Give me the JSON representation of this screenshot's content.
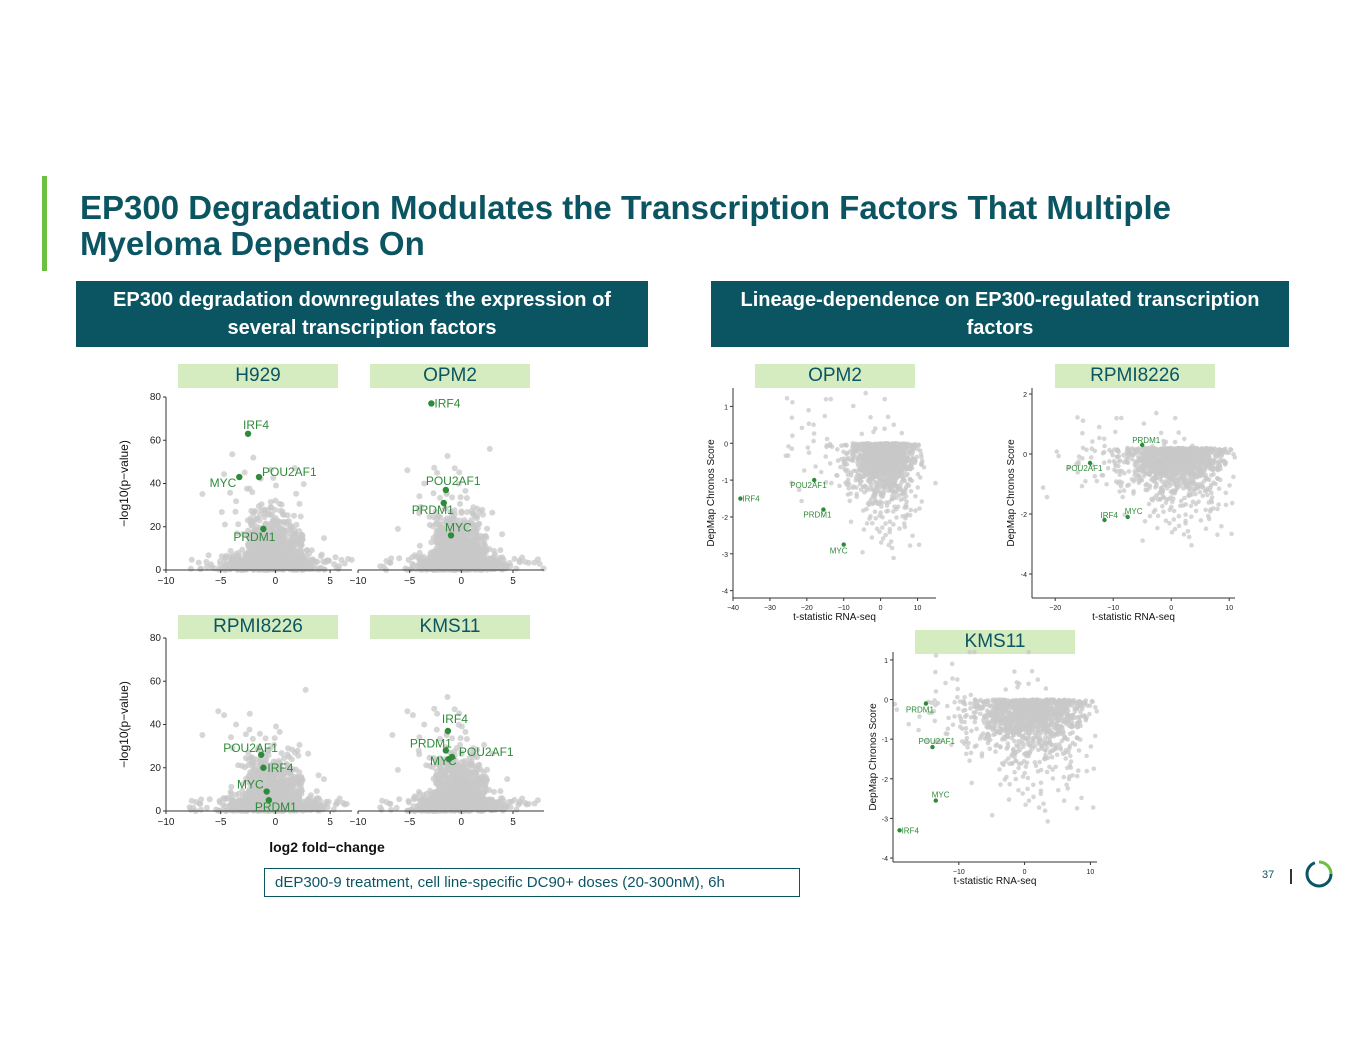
{
  "title": "EP300 Degradation Modulates the Transcription Factors That Multiple Myeloma Depends On",
  "sections": {
    "left": "EP300 degradation downregulates the expression of several transcription factors",
    "right": "Lineage-dependence on EP300-regulated transcription factors"
  },
  "footnote": "dEP300-9 treatment, cell line-specific DC90+ doses (20-300nM), 6h",
  "page_number": "37",
  "colors": {
    "title": "#0b5563",
    "accent": "#6cbf3f",
    "label_bg": "#d5ecc0",
    "highlight": "#2e8b3a",
    "background_points": "#c8c8c8"
  },
  "chart_data": [
    {
      "type": "scatter",
      "panel": "H929",
      "ylabel": "−log10(p−value)",
      "xlim": [
        -10,
        7
      ],
      "ylim": [
        0,
        80
      ],
      "xticks": [
        -10,
        -5,
        0,
        5
      ],
      "yticks": [
        0,
        20,
        40,
        60,
        80
      ],
      "highlighted": [
        {
          "label": "IRF4",
          "x": -2.5,
          "y": 63
        },
        {
          "label": "MYC",
          "x": -3.3,
          "y": 43
        },
        {
          "label": "POU2AF1",
          "x": -1.5,
          "y": 43
        },
        {
          "label": "PRDM1",
          "x": -1.1,
          "y": 19
        }
      ]
    },
    {
      "type": "scatter",
      "panel": "OPM2",
      "xlim": [
        -10,
        8
      ],
      "ylim": [
        0,
        80
      ],
      "xticks": [
        -10,
        -5,
        0,
        5
      ],
      "highlighted": [
        {
          "label": "IRF4",
          "x": -2.9,
          "y": 77
        },
        {
          "label": "POU2AF1",
          "x": -1.5,
          "y": 37
        },
        {
          "label": "PRDM1",
          "x": -1.7,
          "y": 31
        },
        {
          "label": "MYC",
          "x": -1.0,
          "y": 16
        }
      ]
    },
    {
      "type": "scatter",
      "panel": "RPMI8226",
      "ylabel": "−log10(p−value)",
      "xlim": [
        -10,
        7
      ],
      "ylim": [
        0,
        80
      ],
      "xticks": [
        -10,
        -5,
        0,
        5
      ],
      "yticks": [
        0,
        20,
        40,
        60,
        80
      ],
      "highlighted": [
        {
          "label": "POU2AF1",
          "x": -1.3,
          "y": 26
        },
        {
          "label": "IRF4",
          "x": -1.1,
          "y": 20
        },
        {
          "label": "MYC",
          "x": -0.8,
          "y": 9
        },
        {
          "label": "PRDM1",
          "x": -0.6,
          "y": 5
        }
      ]
    },
    {
      "type": "scatter",
      "panel": "KMS11",
      "xlabel": "log2 fold−change",
      "xlim": [
        -10,
        8
      ],
      "ylim": [
        0,
        80
      ],
      "xticks": [
        -10,
        -5,
        0,
        5
      ],
      "highlighted": [
        {
          "label": "IRF4",
          "x": -1.3,
          "y": 37
        },
        {
          "label": "PRDM1",
          "x": -1.5,
          "y": 28
        },
        {
          "label": "POU2AF1",
          "x": -1.2,
          "y": 24
        },
        {
          "label": "MYC",
          "x": -0.9,
          "y": 25
        }
      ]
    },
    {
      "type": "scatter",
      "panel": "OPM2",
      "xlabel": "t-statistic RNA-seq",
      "ylabel": "DepMap Chronos Score",
      "xlim": [
        -40,
        15
      ],
      "ylim": [
        -4.2,
        1.5
      ],
      "xticks": [
        -40,
        -30,
        -20,
        -10,
        0,
        10
      ],
      "yticks": [
        1,
        0,
        -1,
        -2,
        -3,
        -4
      ],
      "highlighted": [
        {
          "label": "IRF4",
          "x": -38,
          "y": -1.5
        },
        {
          "label": "POU2AF1",
          "x": -18,
          "y": -1.0
        },
        {
          "label": "PRDM1",
          "x": -15.5,
          "y": -1.8
        },
        {
          "label": "MYC",
          "x": -10,
          "y": -2.75
        }
      ]
    },
    {
      "type": "scatter",
      "panel": "RPMI8226",
      "xlabel": "t-statistic RNA-seq",
      "ylabel": "DepMap Chronos Score",
      "xlim": [
        -24,
        11
      ],
      "ylim": [
        -4.8,
        2.2
      ],
      "xticks": [
        -20,
        -10,
        0,
        10
      ],
      "yticks": [
        2,
        0,
        -2,
        -4
      ],
      "highlighted": [
        {
          "label": "PRDM1",
          "x": -5,
          "y": 0.3
        },
        {
          "label": "POU2AF1",
          "x": -14,
          "y": -0.3
        },
        {
          "label": "IRF4",
          "x": -11.5,
          "y": -2.2
        },
        {
          "label": "MYC",
          "x": -7.5,
          "y": -2.1
        }
      ]
    },
    {
      "type": "scatter",
      "panel": "KMS11",
      "xlabel": "t-statistic RNA-seq",
      "ylabel": "DepMap Chronos Score",
      "xlim": [
        -20,
        11
      ],
      "ylim": [
        -4.1,
        1.2
      ],
      "xticks": [
        -10,
        0,
        10
      ],
      "yticks": [
        1,
        0,
        -1,
        -2,
        -3,
        -4
      ],
      "highlighted": [
        {
          "label": "PRDM1",
          "x": -15,
          "y": -0.1
        },
        {
          "label": "POU2AF1",
          "x": -14,
          "y": -1.2
        },
        {
          "label": "MYC",
          "x": -13.5,
          "y": -2.55
        },
        {
          "label": "IRF4",
          "x": -19,
          "y": -3.3
        }
      ]
    }
  ]
}
